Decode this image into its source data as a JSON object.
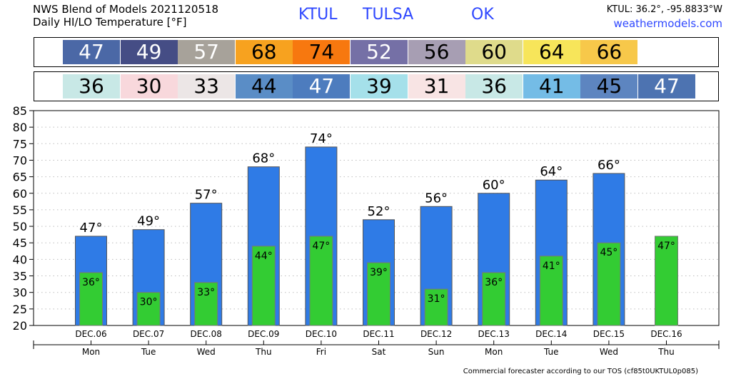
{
  "header": {
    "title_line1": "NWS Blend of Models 2021120518",
    "title_line2": "Daily HI/LO Temperature [°F]",
    "station": "KTUL",
    "city": "TULSA",
    "state": "OK",
    "coords": "KTUL: 36.2°, -95.8833°W",
    "website": "weathermodels.com"
  },
  "hi_row": [
    {
      "value": "47",
      "bg": "#4b68a6",
      "fg": "#ffffff"
    },
    {
      "value": "49",
      "bg": "#454d85",
      "fg": "#ffffff"
    },
    {
      "value": "57",
      "bg": "#a7a29a",
      "fg": "#ffffff"
    },
    {
      "value": "68",
      "bg": "#f7a21f",
      "fg": "#000000"
    },
    {
      "value": "74",
      "bg": "#f7780f",
      "fg": "#000000"
    },
    {
      "value": "52",
      "bg": "#7570a6",
      "fg": "#ffffff"
    },
    {
      "value": "56",
      "bg": "#a79eb3",
      "fg": "#000000"
    },
    {
      "value": "60",
      "bg": "#dfdb8b",
      "fg": "#000000"
    },
    {
      "value": "64",
      "bg": "#f7e55a",
      "fg": "#000000"
    },
    {
      "value": "66",
      "bg": "#f7c84a",
      "fg": "#000000"
    }
  ],
  "lo_row": [
    {
      "value": "36",
      "bg": "#c8e8e6",
      "fg": "#000000"
    },
    {
      "value": "30",
      "bg": "#f8d8dc",
      "fg": "#000000"
    },
    {
      "value": "33",
      "bg": "#ece6e6",
      "fg": "#000000"
    },
    {
      "value": "44",
      "bg": "#5a8dc6",
      "fg": "#000000"
    },
    {
      "value": "47",
      "bg": "#4d7cbe",
      "fg": "#ffffff"
    },
    {
      "value": "39",
      "bg": "#a5e0ea",
      "fg": "#000000"
    },
    {
      "value": "31",
      "bg": "#f8e4e4",
      "fg": "#000000"
    },
    {
      "value": "36",
      "bg": "#c8e8e6",
      "fg": "#000000"
    },
    {
      "value": "41",
      "bg": "#74bce6",
      "fg": "#000000"
    },
    {
      "value": "45",
      "bg": "#5d85c0",
      "fg": "#000000"
    },
    {
      "value": "47",
      "bg": "#4d73b1",
      "fg": "#ffffff"
    }
  ],
  "chart_data": {
    "type": "bar",
    "categories": [
      "DEC.06",
      "DEC.07",
      "DEC.08",
      "DEC.09",
      "DEC.10",
      "DEC.11",
      "DEC.12",
      "DEC.13",
      "DEC.14",
      "DEC.15",
      "DEC.16"
    ],
    "days": [
      "Mon",
      "Tue",
      "Wed",
      "Thu",
      "Fri",
      "Sat",
      "Sun",
      "Mon",
      "Tue",
      "Wed",
      "Thu"
    ],
    "series": [
      {
        "values": [
          47,
          49,
          57,
          68,
          74,
          52,
          56,
          60,
          64,
          66,
          null
        ],
        "color": "#2f7be6"
      },
      {
        "values": [
          36,
          30,
          33,
          44,
          47,
          39,
          31,
          36,
          41,
          45,
          47
        ],
        "color": "#33cc33"
      }
    ],
    "hi_labels": [
      "47°",
      "49°",
      "57°",
      "68°",
      "74°",
      "52°",
      "56°",
      "60°",
      "64°",
      "66°",
      ""
    ],
    "lo_labels": [
      "36°",
      "30°",
      "33°",
      "44°",
      "47°",
      "39°",
      "31°",
      "36°",
      "41°",
      "45°",
      "47°"
    ],
    "yticks": [
      "20",
      "25",
      "30",
      "35",
      "40",
      "45",
      "50",
      "55",
      "60",
      "65",
      "70",
      "75",
      "80",
      "85"
    ],
    "ylim": [
      20,
      85
    ],
    "grid": true
  },
  "footer": "Commercial forecaster according to our TOS (cf85t0UKTUL0p085)"
}
